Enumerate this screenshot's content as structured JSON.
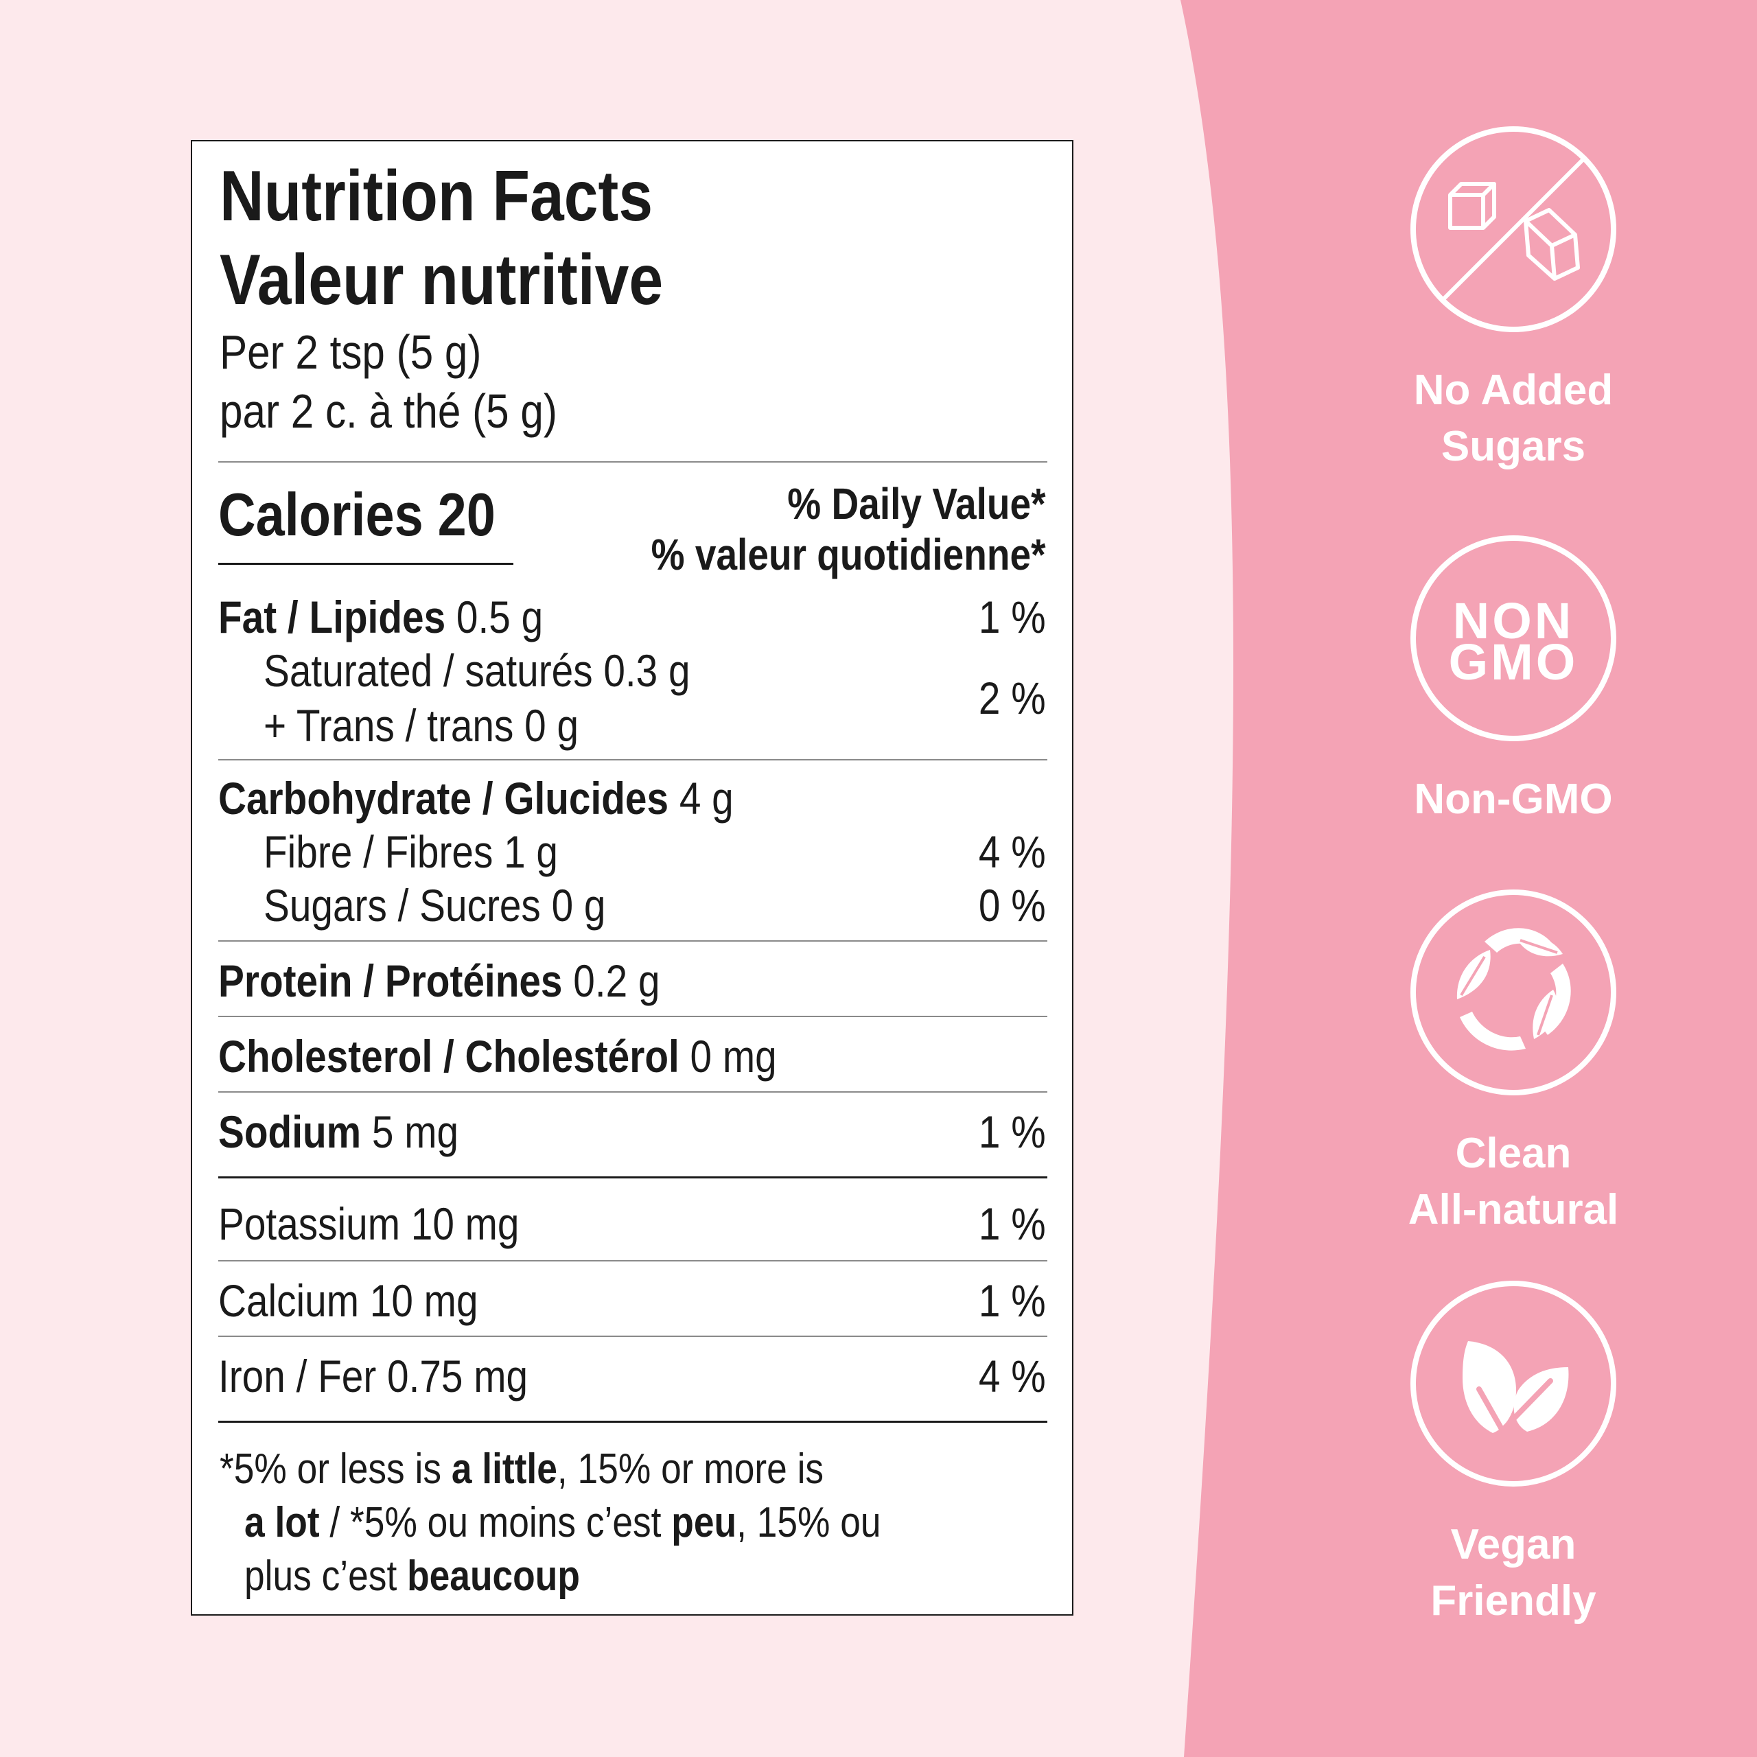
{
  "colors": {
    "background": "#fde9ec",
    "accent_panel": "#f4a3b5",
    "label_bg": "#ffffff",
    "text": "#1a1a1a",
    "badge": "#ffffff"
  },
  "label": {
    "title_en": "Nutrition Facts",
    "title_fr": "Valeur nutritive",
    "serving_en": "Per 2 tsp (5 g)",
    "serving_fr": "par 2 c. à thé (5 g)",
    "calories": "Calories 20",
    "dv_en": "% Daily Value*",
    "dv_fr": "% valeur quotidienne*",
    "fat": {
      "name": "Fat / Lipides",
      "amount": "0.5 g",
      "dv": "1 %"
    },
    "saturated": {
      "text": "Saturated / saturés 0.3 g"
    },
    "trans": {
      "text": "+ Trans / trans 0 g",
      "dv": "2 %"
    },
    "carbohydrate": {
      "name": "Carbohydrate / Glucides",
      "amount": "4 g"
    },
    "fibre": {
      "text": "Fibre / Fibres 1 g",
      "dv": "4 %"
    },
    "sugars": {
      "text": "Sugars / Sucres 0 g",
      "dv": "0 %"
    },
    "protein": {
      "name": "Protein / Protéines",
      "amount": "0.2 g"
    },
    "cholesterol": {
      "name": "Cholesterol / Cholestérol",
      "amount": "0 mg"
    },
    "sodium": {
      "name": "Sodium",
      "amount": "5 mg",
      "dv": "1 %"
    },
    "potassium": {
      "text": "Potassium 10 mg",
      "dv": "1 %"
    },
    "calcium": {
      "text": "Calcium 10 mg",
      "dv": "1 %"
    },
    "iron": {
      "text": "Iron / Fer 0.75 mg",
      "dv": "4 %"
    },
    "footnote": {
      "a": "*5% or less is ",
      "b": "a little",
      "c": ", 15% or more is",
      "d": "a lot",
      "e": " / *5% ou moins c’est ",
      "f": "peu",
      "g": ", 15% ou",
      "h": "plus c’est ",
      "i": "beaucoup"
    }
  },
  "badges": [
    {
      "icon": "no-sugar-cubes-icon",
      "line1": "No Added",
      "line2": "Sugars"
    },
    {
      "icon": "non-gmo-icon",
      "icon_text_1": "NON",
      "icon_text_2": "GMO",
      "line1": "Non-GMO"
    },
    {
      "icon": "recycle-leaves-icon",
      "line1": "Clean",
      "line2": "All-natural"
    },
    {
      "icon": "leaf-icon",
      "line1": "Vegan",
      "line2": "Friendly"
    }
  ]
}
